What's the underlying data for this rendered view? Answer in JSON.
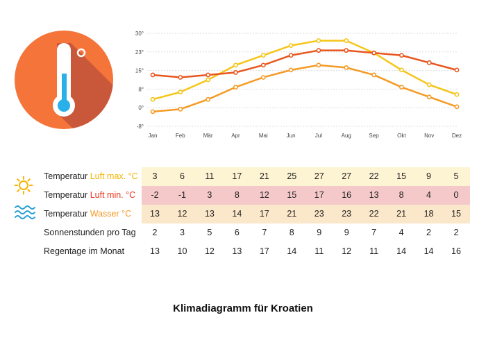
{
  "colors": {
    "luft_max": "#f5c518",
    "luft_min": "#e8561e",
    "wasser": "#f59a23",
    "band_max": "#fdf4d3",
    "band_min": "#f5c9c9",
    "band_wasser": "#fbe7c9",
    "grid": "#dddddd",
    "icon_circle": "#f5743a",
    "icon_shadow": "#c9583a",
    "thermo_fill": "#2ab0e8"
  },
  "chart_data": {
    "type": "line",
    "categories": [
      "Jan",
      "Feb",
      "Mär",
      "Apr",
      "Mai",
      "Jun",
      "Jul",
      "Aug",
      "Sep",
      "Okt",
      "Nov",
      "Dez"
    ],
    "y_ticks": [
      "30°",
      "23°",
      "15°",
      "8°",
      "0°",
      "-8°"
    ],
    "ylim": [
      -8,
      30
    ],
    "grid": true,
    "series": [
      {
        "name": "Temperatur Luft max. °C",
        "color_key": "luft_max",
        "values": [
          3,
          6,
          11,
          17,
          21,
          25,
          27,
          27,
          22,
          15,
          9,
          5
        ]
      },
      {
        "name": "Temperatur Luft min. °C",
        "color_key": "wasser",
        "values": [
          -2,
          -1,
          3,
          8,
          12,
          15,
          17,
          16,
          13,
          8,
          4,
          0
        ]
      },
      {
        "name": "Temperatur Wasser °C",
        "color_key": "luft_min",
        "values": [
          13,
          12,
          13,
          14,
          17,
          21,
          23,
          23,
          22,
          21,
          18,
          15
        ]
      }
    ]
  },
  "table": {
    "rows": [
      {
        "prefix": "Temperatur ",
        "highlight": "Luft max. °C",
        "highlight_color": "#f5b400",
        "band": "band_max",
        "icon": "sun-icon",
        "values": [
          "3",
          "6",
          "11",
          "17",
          "21",
          "25",
          "27",
          "27",
          "22",
          "15",
          "9",
          "5"
        ]
      },
      {
        "prefix": "Temperatur ",
        "highlight": "Luft min. °C",
        "highlight_color": "#e8341e",
        "band": "band_min",
        "icon": "",
        "values": [
          "-2",
          "-1",
          "3",
          "8",
          "12",
          "15",
          "17",
          "16",
          "13",
          "8",
          "4",
          "0"
        ]
      },
      {
        "prefix": "Temperatur ",
        "highlight": "Wasser °C",
        "highlight_color": "#f59a23",
        "band": "band_wasser",
        "icon": "water-waves-icon",
        "values": [
          "13",
          "12",
          "13",
          "14",
          "17",
          "21",
          "23",
          "23",
          "22",
          "21",
          "18",
          "15"
        ]
      },
      {
        "prefix": "Sonnenstunden pro Tag",
        "highlight": "",
        "highlight_color": "",
        "band": "",
        "icon": "",
        "values": [
          "2",
          "3",
          "5",
          "6",
          "7",
          "8",
          "9",
          "9",
          "7",
          "4",
          "2",
          "2"
        ]
      },
      {
        "prefix": "Regentage im Monat",
        "highlight": "",
        "highlight_color": "",
        "band": "",
        "icon": "",
        "values": [
          "13",
          "10",
          "12",
          "13",
          "17",
          "14",
          "11",
          "12",
          "11",
          "14",
          "14",
          "16"
        ]
      }
    ]
  },
  "title": "Klimadiagramm für Kroatien"
}
